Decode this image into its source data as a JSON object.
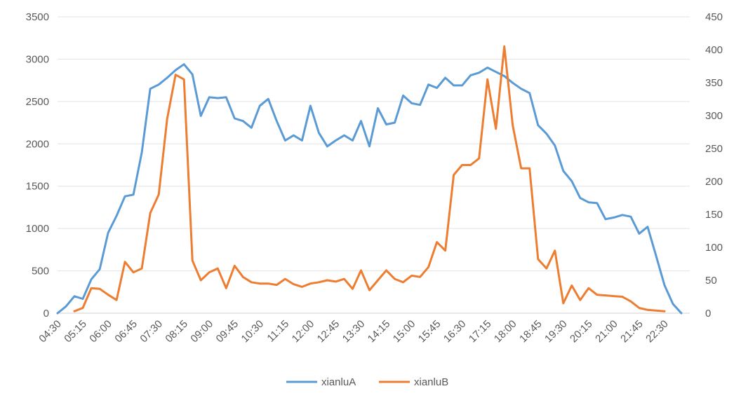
{
  "chart_data": {
    "type": "line",
    "x_tick_labels": [
      "04:30",
      "05:15",
      "06:00",
      "06:45",
      "07:30",
      "08:15",
      "09:00",
      "09:45",
      "10:30",
      "11:15",
      "12:00",
      "12:45",
      "13:30",
      "14:15",
      "15:00",
      "15:45",
      "16:30",
      "17:15",
      "18:00",
      "18:45",
      "19:30",
      "20:15",
      "21:00",
      "21:45",
      "22:30"
    ],
    "y_left_ticks": [
      "0",
      "500",
      "1000",
      "1500",
      "2000",
      "2500",
      "3000",
      "3500"
    ],
    "y_right_ticks": [
      "0",
      "50",
      "100",
      "150",
      "200",
      "250",
      "300",
      "350",
      "400",
      "450"
    ],
    "y_left_range": [
      0,
      3500
    ],
    "y_right_range": [
      0,
      450
    ],
    "x_interval_minutes": 15,
    "legend_position": "bottom",
    "grid": true,
    "series": [
      {
        "name": "xianluA",
        "axis": "left",
        "color": "#5b9bd5",
        "start": "04:30",
        "values": [
          0,
          80,
          200,
          170,
          400,
          520,
          950,
          1150,
          1380,
          1400,
          1900,
          2650,
          2700,
          2780,
          2870,
          2940,
          2820,
          2330,
          2550,
          2540,
          2550,
          2300,
          2270,
          2190,
          2450,
          2530,
          2270,
          2040,
          2100,
          2040,
          2450,
          2130,
          1970,
          2040,
          2100,
          2040,
          2270,
          1970,
          2420,
          2230,
          2250,
          2570,
          2480,
          2460,
          2700,
          2660,
          2780,
          2690,
          2690,
          2810,
          2840,
          2900,
          2850,
          2800,
          2720,
          2650,
          2600,
          2220,
          2120,
          1980,
          1680,
          1560,
          1360,
          1310,
          1300,
          1110,
          1130,
          1160,
          1140,
          940,
          1020,
          680,
          330,
          110,
          0
        ]
      },
      {
        "name": "xianluB",
        "axis": "right",
        "color": "#ed7d31",
        "start": "05:00",
        "values": [
          3,
          8,
          38,
          37,
          28,
          20,
          78,
          62,
          68,
          152,
          180,
          295,
          362,
          355,
          80,
          50,
          62,
          68,
          38,
          72,
          55,
          47,
          45,
          45,
          43,
          52,
          44,
          40,
          45,
          47,
          50,
          48,
          52,
          37,
          65,
          35,
          50,
          65,
          52,
          47,
          57,
          55,
          70,
          108,
          95,
          210,
          225,
          225,
          235,
          355,
          280,
          405,
          285,
          220,
          220,
          82,
          68,
          95,
          15,
          42,
          20,
          38,
          28,
          27,
          26,
          25,
          18,
          8,
          5,
          4,
          3
        ]
      }
    ]
  }
}
